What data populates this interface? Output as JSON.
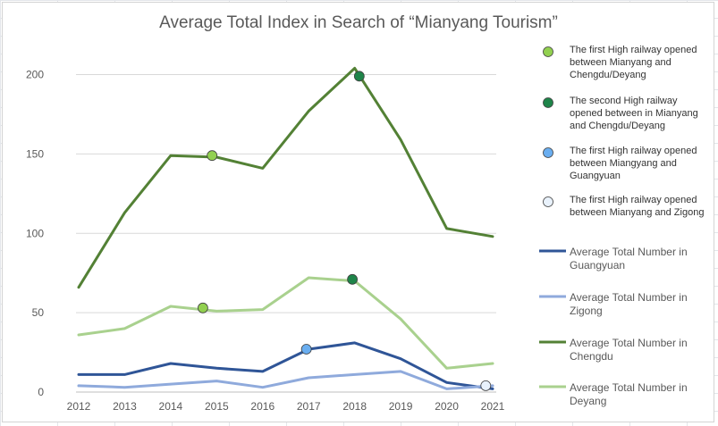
{
  "chart_data": {
    "type": "line",
    "title": "Average Total Index in Search of “Mianyang Tourism”",
    "categories": [
      "2012",
      "2013",
      "2014",
      "2015",
      "2016",
      "2017",
      "2018",
      "2019",
      "2020",
      "2021"
    ],
    "ylim": [
      0,
      220
    ],
    "yticks": [
      0,
      50,
      100,
      150,
      200
    ],
    "grid": true,
    "legend_position": "right",
    "series": [
      {
        "key": "chengdu",
        "name": "Average Total Number in Chengdu",
        "label_lines": [
          "Average Total Number in",
          "Chengdu"
        ],
        "color": "#538135",
        "values": [
          66,
          113,
          149,
          148,
          141,
          177,
          204,
          159,
          103,
          98
        ]
      },
      {
        "key": "deyang",
        "name": "Average Total Number in Deyang",
        "label_lines": [
          "Average Total Number in",
          "Deyang"
        ],
        "color": "#a9d18e",
        "values": [
          36,
          40,
          54,
          51,
          52,
          72,
          70,
          46,
          15,
          18
        ]
      },
      {
        "key": "guangyuan",
        "name": "Average Total Number in Guangyuan",
        "label_lines": [
          "Average Total Number in",
          "Guangyuan"
        ],
        "color": "#2f5597",
        "values": [
          11,
          11,
          18,
          15,
          13,
          27,
          31,
          21,
          6,
          2
        ]
      },
      {
        "key": "zigong",
        "name": "Average Total Number in Zigong",
        "label_lines": [
          "Average Total Number in",
          "Zigong"
        ],
        "color": "#8faadc",
        "values": [
          4,
          3,
          5,
          7,
          3,
          9,
          11,
          13,
          2,
          4
        ]
      }
    ],
    "legend_series_order": [
      "guangyuan",
      "zigong",
      "chengdu",
      "deyang"
    ],
    "events": [
      {
        "key": "first-chengdu",
        "name": "The first High railway opened between Mianyang and Chengdu/Deyang",
        "label_lines": [
          "The first High railway opened",
          "between Mianyang and",
          "Chengdu/Deyang"
        ],
        "color": "#92d050",
        "markers": [
          {
            "x": 2014.9,
            "y": 149
          },
          {
            "x": 2014.7,
            "y": 53
          }
        ]
      },
      {
        "key": "second-chengdu",
        "name": "The second High railway opened between in Mianyang and Chengdu/Deyang",
        "label_lines": [
          "The second High railway",
          "opened between in Mianyang",
          "and Chengdu/Deyang"
        ],
        "color": "#1e8449",
        "markers": [
          {
            "x": 2018.1,
            "y": 199
          },
          {
            "x": 2017.95,
            "y": 71
          }
        ]
      },
      {
        "key": "first-guangyuan",
        "name": "The first High railway opened between Miangyang and Guangyuan",
        "label_lines": [
          "The first High railway opened",
          "between Miangyang and",
          "Guangyuan"
        ],
        "color": "#6aaef0",
        "markers": [
          {
            "x": 2016.95,
            "y": 27
          }
        ]
      },
      {
        "key": "first-zigong",
        "name": "The first High railway opened between Mianyang and Zigong",
        "label_lines": [
          "The first High railway opened",
          "between Mianyang and Zigong"
        ],
        "color": "#e9f2fc",
        "markers": [
          {
            "x": 2020.85,
            "y": 4
          }
        ]
      }
    ]
  }
}
